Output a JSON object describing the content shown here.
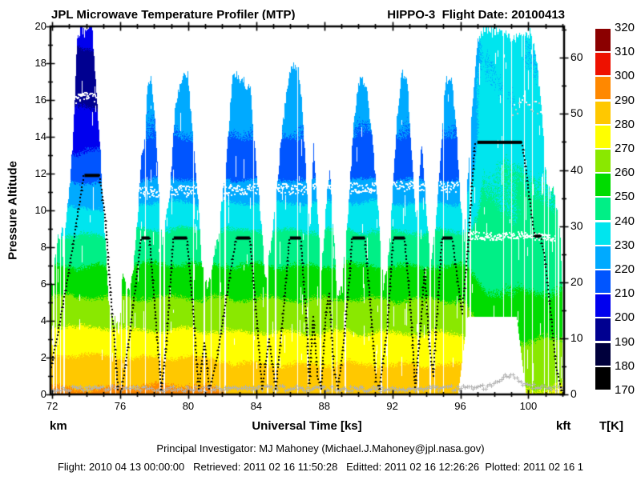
{
  "header": {
    "left_title": "JPL Microwave Temperature Profiler (MTP)",
    "right_title": "HIPPO-3  Flight Date: 20100413"
  },
  "footer": {
    "line1": "Principal Investigator: MJ Mahoney (Michael.J.Mahoney@jpl.nasa.gov)",
    "line2": "Flight: 2010 04 13 00:00:00   Retrieved: 2011 02 16 11:50:28   Editted: 2011 02 16 12:26:26  Plotted: 2011 02 16 1"
  },
  "unit_labels": {
    "left_bottom": "km",
    "x_axis": "Universal Time [ks]",
    "right_bottom": "kft",
    "colorbar_bottom": "T[K]"
  },
  "chart_data": {
    "type": "heatmap",
    "title": "JPL Microwave Temperature Profiler (MTP)",
    "subtitle": "HIPPO-3  Flight Date: 20100413",
    "xlabel": "Universal Time [ks]",
    "x_axis": {
      "range_ks": [
        71.9,
        102.1
      ],
      "major_ticks": [
        72,
        76,
        80,
        84,
        88,
        92,
        96,
        100
      ],
      "minor_step": 1
    },
    "y_axis_left": {
      "label": "Pressure Altitude",
      "unit": "km",
      "range": [
        0,
        20
      ],
      "major_ticks": [
        0,
        2,
        4,
        6,
        8,
        10,
        12,
        14,
        16,
        18,
        20
      ],
      "minor_step": 1
    },
    "y_axis_right": {
      "unit": "kft",
      "range": [
        0,
        65.6
      ],
      "major_ticks": [
        0,
        10,
        20,
        30,
        40,
        50,
        60
      ],
      "minor_step": 5
    },
    "colorbar": {
      "unit": "T[K]",
      "range": [
        170,
        320
      ],
      "tick_step": 10,
      "tick_values": [
        170,
        180,
        190,
        200,
        210,
        220,
        230,
        240,
        250,
        260,
        270,
        280,
        290,
        300,
        310,
        320
      ],
      "band_colors_low_to_high": [
        "#000000",
        "#00003c",
        "#000090",
        "#0000ee",
        "#0055ff",
        "#00aaff",
        "#00e5ee",
        "#00ef86",
        "#00dc00",
        "#8ae800",
        "#ffff00",
        "#ffc800",
        "#ff8800",
        "#ee1100",
        "#8b0000"
      ]
    },
    "temperature_profiles_K_by_alt_km": {
      "early_t_lt_75": [
        [
          0,
          292
        ],
        [
          2,
          281
        ],
        [
          4,
          268
        ],
        [
          6,
          256
        ],
        [
          8,
          244
        ],
        [
          9,
          238
        ],
        [
          10,
          231
        ],
        [
          11,
          224
        ],
        [
          12,
          217
        ],
        [
          13,
          211
        ],
        [
          14,
          206.5
        ],
        [
          15.5,
          200.5
        ],
        [
          16.5,
          196
        ],
        [
          17.5,
          195.5
        ],
        [
          18.5,
          198.5
        ],
        [
          19.3,
          202.5
        ],
        [
          20,
          206.5
        ]
      ],
      "mid_a": [
        [
          0,
          293
        ],
        [
          1,
          287
        ],
        [
          2,
          280
        ],
        [
          3,
          273
        ],
        [
          4,
          267
        ],
        [
          5,
          261.5
        ],
        [
          6,
          256
        ],
        [
          7,
          250.5
        ],
        [
          8,
          245.5
        ],
        [
          9,
          240
        ],
        [
          10,
          233
        ],
        [
          10.8,
          227.5
        ],
        [
          11.5,
          221.5
        ],
        [
          12,
          218
        ],
        [
          13,
          215.5
        ],
        [
          14,
          219.5
        ],
        [
          15,
          221
        ],
        [
          16,
          222
        ],
        [
          17,
          223
        ],
        [
          18,
          223.5
        ]
      ],
      "mid_b": [
        [
          0,
          288
        ],
        [
          1,
          283.5
        ],
        [
          2,
          278
        ],
        [
          3,
          272
        ],
        [
          4,
          266.5
        ],
        [
          5,
          261
        ],
        [
          6,
          255.5
        ],
        [
          7,
          250
        ],
        [
          8,
          245
        ],
        [
          9,
          239.5
        ],
        [
          10,
          233
        ],
        [
          10.8,
          227.5
        ],
        [
          11.5,
          221.5
        ],
        [
          12,
          217.5
        ],
        [
          13,
          215.5
        ],
        [
          14,
          219.5
        ],
        [
          15,
          221.5
        ],
        [
          16,
          222.5
        ],
        [
          17,
          223.5
        ],
        [
          18,
          224
        ]
      ],
      "late_t_gt_97": [
        [
          0,
          271
        ],
        [
          1,
          268
        ],
        [
          2,
          264
        ],
        [
          3,
          260
        ],
        [
          4,
          256
        ],
        [
          5,
          252
        ],
        [
          6,
          249
        ],
        [
          7,
          246.5
        ],
        [
          8,
          243.5
        ],
        [
          9,
          242
        ],
        [
          10,
          241
        ],
        [
          11,
          240.5
        ],
        [
          12,
          240
        ],
        [
          13,
          238.5
        ],
        [
          13.6,
          236
        ],
        [
          14.5,
          233
        ],
        [
          16,
          231.5
        ],
        [
          18,
          231
        ],
        [
          19.7,
          232
        ]
      ]
    },
    "flight_track_ks_km": [
      [
        71.9,
        1.3
      ],
      [
        72.35,
        3.4
      ],
      [
        73.0,
        6.8
      ],
      [
        73.85,
        11.85
      ],
      [
        74.78,
        11.9
      ],
      [
        75.1,
        9.8
      ],
      [
        75.5,
        4.8
      ],
      [
        75.88,
        0.25
      ],
      [
        76.1,
        0.3
      ],
      [
        76.6,
        3.5
      ],
      [
        77.22,
        8.4
      ],
      [
        77.72,
        8.5
      ],
      [
        78.05,
        4.5
      ],
      [
        78.42,
        0.25
      ],
      [
        78.7,
        2.5
      ],
      [
        79.12,
        8.45
      ],
      [
        79.92,
        8.5
      ],
      [
        80.25,
        5
      ],
      [
        80.62,
        0.3
      ],
      [
        80.95,
        2.8
      ],
      [
        81.25,
        0.3
      ],
      [
        81.7,
        2
      ],
      [
        82.2,
        5
      ],
      [
        82.82,
        8.5
      ],
      [
        83.62,
        8.5
      ],
      [
        83.95,
        5
      ],
      [
        84.35,
        0.3
      ],
      [
        84.75,
        3
      ],
      [
        85.15,
        0.3
      ],
      [
        85.55,
        4
      ],
      [
        85.95,
        8.4
      ],
      [
        86.62,
        8.5
      ],
      [
        86.95,
        4
      ],
      [
        87.12,
        0.6
      ],
      [
        87.35,
        4.2
      ],
      [
        87.6,
        1
      ],
      [
        87.82,
        0.3
      ],
      [
        88.1,
        4.5
      ],
      [
        88.3,
        5.5
      ],
      [
        88.55,
        1.5
      ],
      [
        88.8,
        0.3
      ],
      [
        89.05,
        2
      ],
      [
        89.5,
        6.5
      ],
      [
        89.62,
        8.45
      ],
      [
        90.38,
        8.5
      ],
      [
        90.7,
        5
      ],
      [
        91.05,
        0.7
      ],
      [
        91.25,
        0.3
      ],
      [
        91.7,
        3.5
      ],
      [
        92.05,
        8.4
      ],
      [
        92.72,
        8.5
      ],
      [
        93.05,
        5
      ],
      [
        93.35,
        0.4
      ],
      [
        93.65,
        3.5
      ],
      [
        93.9,
        6.8
      ],
      [
        94.15,
        3
      ],
      [
        94.4,
        1
      ],
      [
        94.68,
        5
      ],
      [
        94.92,
        8.45
      ],
      [
        95.52,
        8.5
      ],
      [
        95.8,
        6.5
      ],
      [
        96.1,
        4.4
      ],
      [
        96.45,
        8
      ],
      [
        96.85,
        13.6
      ],
      [
        97.1,
        13.7
      ],
      [
        99.62,
        13.7
      ],
      [
        99.9,
        12
      ],
      [
        100.15,
        10
      ],
      [
        100.38,
        8.6
      ],
      [
        100.72,
        8.6
      ],
      [
        100.95,
        7.5
      ],
      [
        101.3,
        4.5
      ],
      [
        101.65,
        1.5
      ],
      [
        101.95,
        0.2
      ]
    ],
    "level_legs_ks_km": [
      [
        73.9,
        74.78,
        11.9
      ],
      [
        77.25,
        77.72,
        8.5
      ],
      [
        79.15,
        79.92,
        8.5
      ],
      [
        82.85,
        83.62,
        8.5
      ],
      [
        85.98,
        86.62,
        8.5
      ],
      [
        89.65,
        90.38,
        8.5
      ],
      [
        92.08,
        92.72,
        8.5
      ],
      [
        94.95,
        95.52,
        8.5
      ],
      [
        97.0,
        99.62,
        13.7
      ],
      [
        100.38,
        100.72,
        8.6
      ]
    ],
    "curtain_top_ks_km": [
      [
        71.9,
        5.5
      ],
      [
        72.1,
        7
      ],
      [
        72.3,
        8.5
      ],
      [
        72.55,
        9
      ],
      [
        72.75,
        9.5
      ],
      [
        73.0,
        11.5
      ],
      [
        73.2,
        14
      ],
      [
        73.45,
        19.6
      ],
      [
        73.6,
        20
      ],
      [
        74.35,
        20
      ],
      [
        74.55,
        17
      ],
      [
        74.8,
        13.5
      ],
      [
        75.05,
        9
      ],
      [
        75.3,
        5
      ],
      [
        75.6,
        3.8
      ],
      [
        75.9,
        3.2
      ],
      [
        76.15,
        6.5
      ],
      [
        76.45,
        5.5
      ],
      [
        76.7,
        6.5
      ],
      [
        77.0,
        9.5
      ],
      [
        77.2,
        12.8
      ],
      [
        77.38,
        13.2
      ],
      [
        77.6,
        16.8
      ],
      [
        77.8,
        17.4
      ],
      [
        78.0,
        15.5
      ],
      [
        78.2,
        12
      ],
      [
        78.45,
        8.5
      ],
      [
        78.65,
        9.5
      ],
      [
        78.9,
        11
      ],
      [
        79.2,
        15.8
      ],
      [
        79.5,
        17.5
      ],
      [
        79.95,
        17.3
      ],
      [
        80.2,
        14.5
      ],
      [
        80.5,
        11
      ],
      [
        80.8,
        7
      ],
      [
        81.1,
        5.2
      ],
      [
        81.4,
        6.5
      ],
      [
        81.75,
        8.5
      ],
      [
        82.05,
        11
      ],
      [
        82.35,
        14.5
      ],
      [
        82.6,
        17.3
      ],
      [
        83.0,
        17.4
      ],
      [
        83.35,
        17.2
      ],
      [
        83.65,
        16.8
      ],
      [
        83.95,
        13
      ],
      [
        84.2,
        10
      ],
      [
        84.5,
        6.5
      ],
      [
        84.8,
        8
      ],
      [
        85.1,
        10.5
      ],
      [
        85.45,
        13.5
      ],
      [
        85.8,
        16.5
      ],
      [
        86.1,
        17.4
      ],
      [
        86.45,
        17.4
      ],
      [
        86.7,
        15
      ],
      [
        86.95,
        11
      ],
      [
        87.15,
        8.5
      ],
      [
        87.35,
        13.2
      ],
      [
        87.55,
        10
      ],
      [
        87.8,
        6.5
      ],
      [
        88.05,
        10
      ],
      [
        88.3,
        12.6
      ],
      [
        88.5,
        9
      ],
      [
        88.75,
        5.5
      ],
      [
        89.0,
        6
      ],
      [
        89.3,
        9
      ],
      [
        89.6,
        13.5
      ],
      [
        89.9,
        16.5
      ],
      [
        90.2,
        17.4
      ],
      [
        90.5,
        16.5
      ],
      [
        90.85,
        13.5
      ],
      [
        91.15,
        10
      ],
      [
        91.45,
        6
      ],
      [
        91.75,
        7.5
      ],
      [
        92.0,
        11
      ],
      [
        92.25,
        15
      ],
      [
        92.55,
        17.4
      ],
      [
        92.85,
        17.2
      ],
      [
        93.1,
        13.5
      ],
      [
        93.4,
        9.5
      ],
      [
        93.7,
        13.8
      ],
      [
        93.95,
        10.5
      ],
      [
        94.25,
        7
      ],
      [
        94.55,
        9.5
      ],
      [
        94.85,
        13.5
      ],
      [
        95.15,
        17.3
      ],
      [
        95.45,
        17.1
      ],
      [
        95.75,
        13.5
      ],
      [
        96.0,
        10
      ],
      [
        96.2,
        8
      ],
      [
        96.45,
        12
      ],
      [
        96.7,
        16
      ],
      [
        96.9,
        18.5
      ],
      [
        97.1,
        19.4
      ],
      [
        97.5,
        19.6
      ],
      [
        98.5,
        19.5
      ],
      [
        99.5,
        19.6
      ],
      [
        100.1,
        19.7
      ],
      [
        100.35,
        18.8
      ],
      [
        100.6,
        16.5
      ],
      [
        100.85,
        14
      ],
      [
        101.05,
        11.5
      ],
      [
        101.25,
        10.5
      ],
      [
        101.45,
        10.8
      ],
      [
        101.65,
        9.8
      ],
      [
        101.85,
        9
      ],
      [
        102.0,
        5
      ]
    ],
    "curtain_bottom_gap_ks_km": [
      [
        95.85,
        0
      ],
      [
        96.4,
        4.2
      ],
      [
        99.3,
        4.2
      ],
      [
        99.85,
        0
      ]
    ],
    "data_gaps_ks": [
      [
        72.03,
        72.1
      ],
      [
        72.2,
        72.26
      ],
      [
        72.42,
        72.5
      ],
      [
        72.62,
        72.72
      ],
      [
        75.38,
        75.48
      ],
      [
        75.68,
        75.76
      ],
      [
        76.0,
        76.08
      ],
      [
        76.3,
        76.4
      ],
      [
        76.52,
        76.6
      ],
      [
        77.42,
        77.5
      ],
      [
        78.28,
        78.36
      ],
      [
        78.52,
        78.6
      ],
      [
        80.88,
        80.95
      ],
      [
        81.28,
        81.36
      ],
      [
        82.12,
        82.2
      ],
      [
        83.78,
        83.84
      ],
      [
        84.62,
        84.7
      ],
      [
        85.1,
        85.16
      ],
      [
        86.98,
        87.06
      ],
      [
        87.7,
        87.78
      ],
      [
        88.4,
        88.48
      ],
      [
        88.68,
        88.76
      ],
      [
        89.15,
        89.25
      ],
      [
        91.3,
        91.38
      ],
      [
        91.65,
        91.72
      ],
      [
        93.45,
        93.55
      ],
      [
        94.18,
        94.26
      ],
      [
        96.28,
        96.36
      ],
      [
        96.52,
        96.6
      ],
      [
        98.48,
        98.55
      ],
      [
        98.95,
        99.02
      ],
      [
        99.72,
        99.78
      ],
      [
        100.18,
        100.24
      ],
      [
        100.9,
        100.96
      ],
      [
        101.12,
        101.18
      ],
      [
        101.55,
        101.6
      ],
      [
        101.72,
        101.78
      ],
      [
        102.0,
        102.3
      ]
    ],
    "tropopause_traces": [
      {
        "t_start": 73.35,
        "t_end": 74.75,
        "alt_points": [
          [
            73.35,
            16.1
          ],
          [
            74.0,
            16.25
          ],
          [
            74.75,
            16.15
          ]
        ],
        "wiggle": 0.25,
        "style": "white"
      },
      {
        "t_start": 76.85,
        "t_end": 96.35,
        "alt_points": [
          [
            76.85,
            11.0
          ],
          [
            80,
            11.1
          ],
          [
            84,
            11.2
          ],
          [
            88,
            11.2
          ],
          [
            92,
            11.35
          ],
          [
            96.35,
            11.3
          ]
        ],
        "wiggle": 0.3,
        "style": "white"
      },
      {
        "t_start": 96.45,
        "t_end": 101.55,
        "alt_points": [
          [
            96.45,
            8.7
          ],
          [
            98,
            8.6
          ],
          [
            99.5,
            8.7
          ],
          [
            100.5,
            8.6
          ],
          [
            101.55,
            8.5
          ]
        ],
        "wiggle": 0.2,
        "style": "white"
      },
      {
        "t_start": 99.05,
        "t_end": 100.75,
        "alt_points": [
          [
            99.05,
            15.6
          ],
          [
            99.9,
            15.9
          ],
          [
            100.75,
            15.7
          ]
        ],
        "wiggle": 0.45,
        "style": "sparse"
      }
    ],
    "surface_trace_ks_km": {
      "alt_points": [
        [
          71.9,
          0.3
        ],
        [
          75,
          0.35
        ],
        [
          80,
          0.3
        ],
        [
          85,
          0.35
        ],
        [
          90,
          0.3
        ],
        [
          95,
          0.35
        ],
        [
          97.5,
          0.4
        ],
        [
          98.2,
          0.6
        ],
        [
          98.7,
          1.05
        ],
        [
          99.0,
          1.1
        ],
        [
          99.3,
          0.85
        ],
        [
          99.6,
          0.55
        ],
        [
          100.2,
          0.45
        ],
        [
          101,
          0.4
        ],
        [
          101.9,
          0.3
        ]
      ],
      "wiggle": 0.13
    }
  }
}
